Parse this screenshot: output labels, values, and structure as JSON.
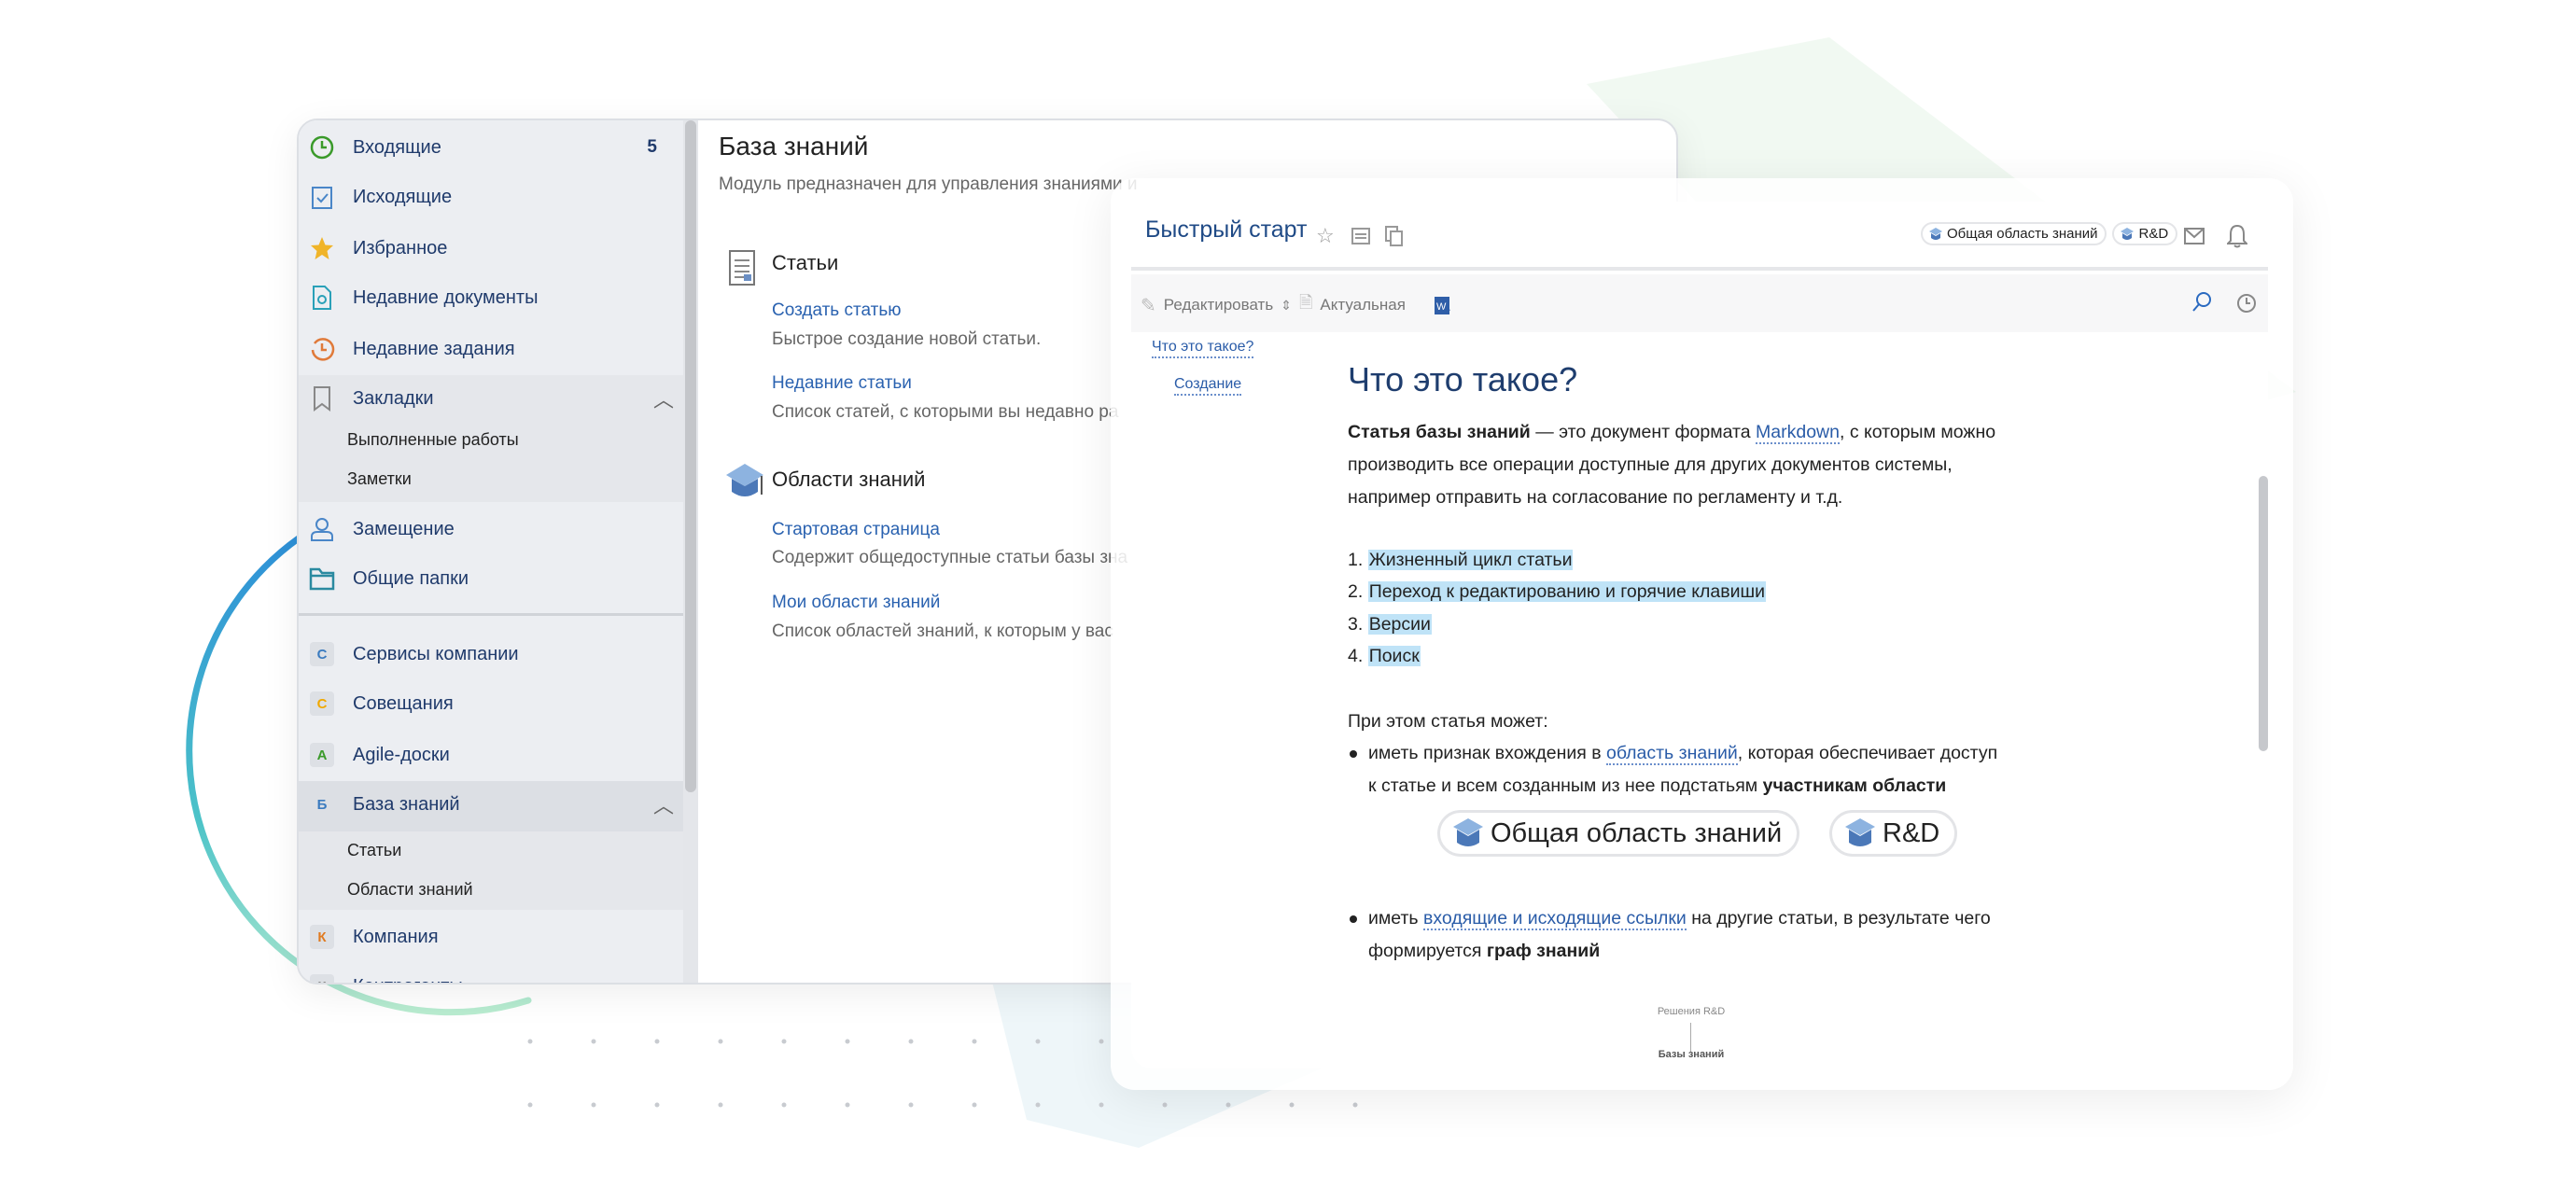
{
  "colors": {
    "accent": "#2a5ca8",
    "title": "#1e3d6e",
    "highlight": "#bfe3f7",
    "sidebar_bg": "#eceef2"
  },
  "sidebar": {
    "items": [
      {
        "label": "Входящие",
        "icon": "clock-icon",
        "count": "5"
      },
      {
        "label": "Исходящие",
        "icon": "checklist-icon"
      },
      {
        "label": "Избранное",
        "icon": "star-icon"
      },
      {
        "label": "Недавние документы",
        "icon": "recent-document-icon"
      },
      {
        "label": "Недавние задания",
        "icon": "recent-tasks-icon"
      },
      {
        "label": "Закладки",
        "icon": "bookmark-icon",
        "expanded": true,
        "children": [
          "Выполненные работы",
          "Заметки"
        ]
      },
      {
        "label": "Замещение",
        "icon": "user-icon"
      },
      {
        "label": "Общие папки",
        "icon": "folder-icon"
      }
    ],
    "apps": [
      {
        "letter": "С",
        "label": "Сервисы компании",
        "color": "#3b7bbf"
      },
      {
        "letter": "С",
        "label": "Совещания",
        "color": "#f0a800"
      },
      {
        "letter": "A",
        "label": "Agile-доски",
        "color": "#3a9a2a"
      },
      {
        "letter": "Б",
        "label": "База знаний",
        "color": "#3b7bbf",
        "selected": true,
        "expanded": true,
        "children": [
          "Статьи",
          "Области знаний"
        ]
      },
      {
        "letter": "К",
        "label": "Компания",
        "color": "#e07a20"
      },
      {
        "letter": "К",
        "label": "Контрагенты",
        "color": "#888"
      }
    ]
  },
  "main": {
    "title": "База знаний",
    "subtitle": "Модуль предназначен для управления знаниями и",
    "sections": [
      {
        "title": "Статьи",
        "icon": "document-icon",
        "links": [
          {
            "label": "Создать статью",
            "desc": "Быстрое создание новой статьи."
          },
          {
            "label": "Недавние статьи",
            "desc": "Список статей, с которыми вы недавно ра"
          }
        ]
      },
      {
        "title": "Области знаний",
        "icon": "graduation-cap-icon",
        "links": [
          {
            "label": "Стартовая страница",
            "desc": "Содержит общедоступные статьи базы зна"
          },
          {
            "label": "Мои области знаний",
            "desc": "Список областей знаний, к которым у вас"
          }
        ]
      }
    ]
  },
  "article": {
    "title": "Быстрый старт",
    "tags": [
      "Общая область знаний",
      "R&D"
    ],
    "toolbar": {
      "edit": "Редактировать",
      "status": "Актуальная"
    },
    "toc": [
      "Что это такое?",
      "Создание"
    ],
    "heading": "Что это такое?",
    "intro": {
      "bold": "Статья базы знаний",
      "t1": " — это документ формата ",
      "link": "Markdown",
      "t2": ", с которым можно",
      "line2": "производить все операции доступные для других документов системы,",
      "line3": "например отправить на согласование по регламенту и т.д."
    },
    "list": [
      "Жизненный цикл статьи",
      "Переход к редактированию и горячие клавиши",
      "Версии",
      "Поиск"
    ],
    "can": "При этом статья может:",
    "b1": {
      "t1": "иметь признак вхождения в ",
      "link": "область знаний",
      "t2": ", которая обеспечивает доступ",
      "line2": "к статье и всем созданным из нее подстатьям ",
      "bold": "участникам области"
    },
    "b2": {
      "t1": "иметь ",
      "link": "входящие и исходящие ссылки",
      "t2": " на другие статьи, в результате чего",
      "line2": "формируется ",
      "bold": "граф знаний"
    },
    "graph": {
      "top": "Решения R&D",
      "bottom": "Базы знаний"
    }
  }
}
